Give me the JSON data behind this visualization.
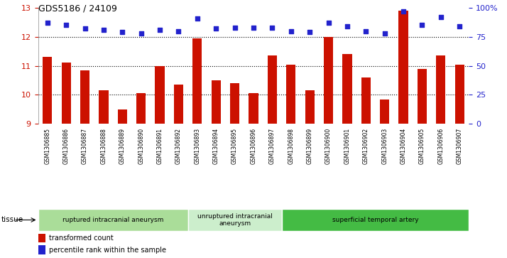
{
  "title": "GDS5186 / 24109",
  "samples": [
    "GSM1306885",
    "GSM1306886",
    "GSM1306887",
    "GSM1306888",
    "GSM1306889",
    "GSM1306890",
    "GSM1306891",
    "GSM1306892",
    "GSM1306893",
    "GSM1306894",
    "GSM1306895",
    "GSM1306896",
    "GSM1306897",
    "GSM1306898",
    "GSM1306899",
    "GSM1306900",
    "GSM1306901",
    "GSM1306902",
    "GSM1306903",
    "GSM1306904",
    "GSM1306905",
    "GSM1306906",
    "GSM1306907"
  ],
  "transformed_count": [
    11.3,
    11.1,
    10.85,
    10.15,
    9.5,
    10.05,
    11.0,
    10.35,
    11.95,
    10.5,
    10.4,
    10.05,
    11.35,
    11.05,
    10.15,
    12.0,
    11.4,
    10.6,
    9.85,
    12.9,
    10.9,
    11.35,
    11.05
  ],
  "percentile_rank": [
    87,
    85,
    82,
    81,
    79,
    78,
    81,
    80,
    91,
    82,
    83,
    83,
    83,
    80,
    79,
    87,
    84,
    80,
    78,
    97,
    85,
    92,
    84
  ],
  "ylim_left": [
    9,
    13
  ],
  "ylim_right": [
    0,
    100
  ],
  "yticks_left": [
    9,
    10,
    11,
    12,
    13
  ],
  "yticks_right": [
    0,
    25,
    50,
    75,
    100
  ],
  "ytick_labels_right": [
    "0",
    "25",
    "50",
    "75",
    "100%"
  ],
  "bar_color": "#cc1100",
  "square_color": "#2222cc",
  "fig_bg_color": "#ffffff",
  "plot_bg_color": "#ffffff",
  "ticklabel_bg_color": "#d8d8d8",
  "groups": [
    {
      "label": "ruptured intracranial aneurysm",
      "start": 0,
      "end": 8,
      "color": "#aadd99"
    },
    {
      "label": "unruptured intracranial\naneurysm",
      "start": 8,
      "end": 13,
      "color": "#cceecc"
    },
    {
      "label": "superficial temporal artery",
      "start": 13,
      "end": 23,
      "color": "#44bb44"
    }
  ],
  "legend_bar_label": "transformed count",
  "legend_sq_label": "percentile rank within the sample",
  "tissue_label": "tissue",
  "axis_label_color_left": "#cc1100",
  "axis_label_color_right": "#2222cc"
}
